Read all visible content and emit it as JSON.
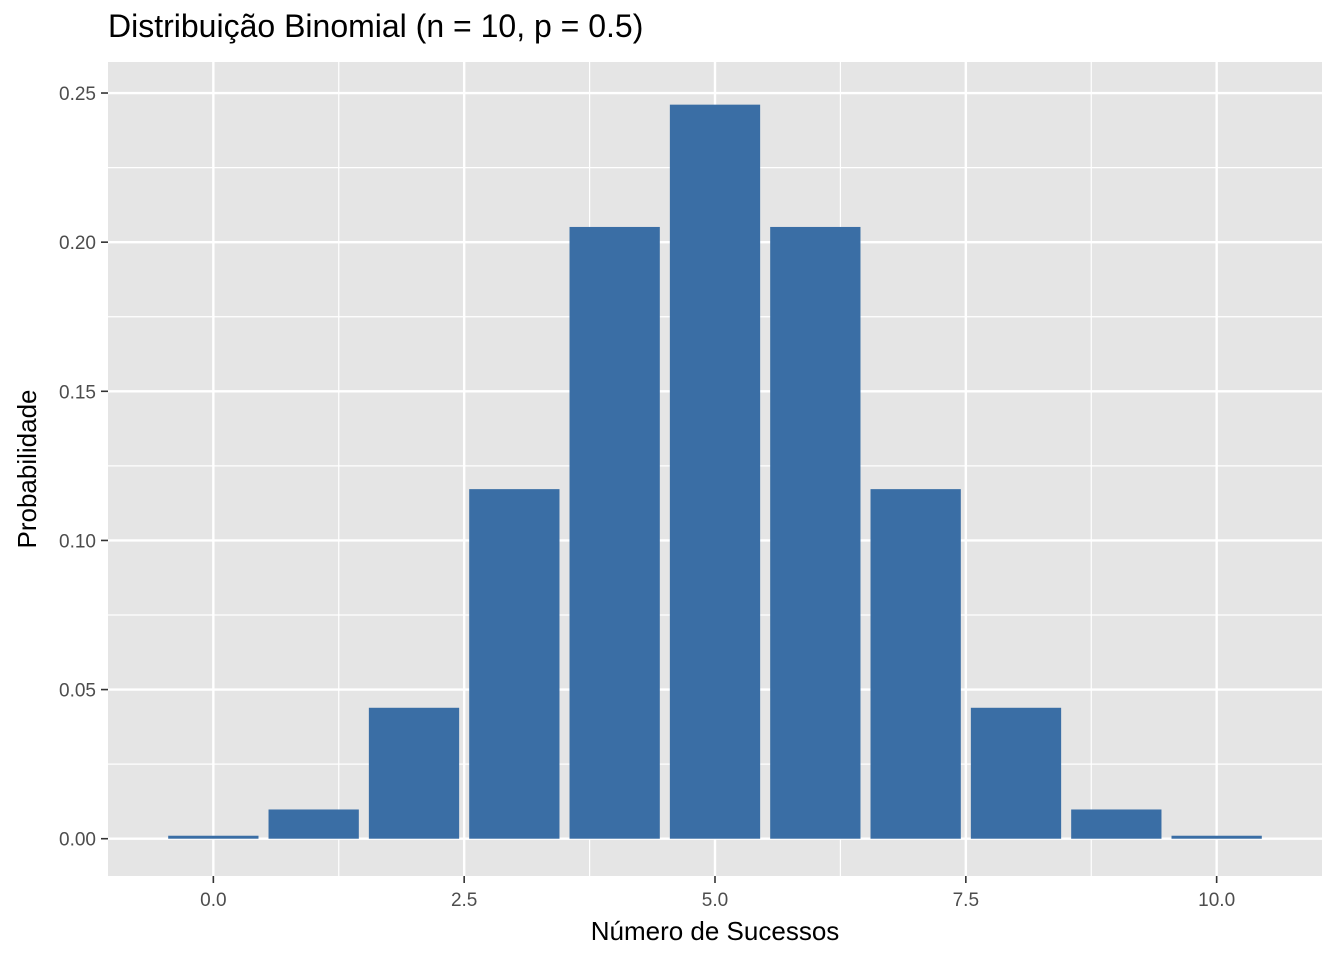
{
  "title": "Distribuição Binomial (n = 10, p = 0.5)",
  "chart_data": {
    "type": "bar",
    "title": "Distribuição Binomial (n = 10, p = 0.5)",
    "xlabel": "Número de Sucessos",
    "ylabel": "Probabilidade",
    "x": [
      0,
      1,
      2,
      3,
      4,
      5,
      6,
      7,
      8,
      9,
      10
    ],
    "values": [
      0.001,
      0.0098,
      0.0439,
      0.1172,
      0.2051,
      0.2461,
      0.2051,
      0.1172,
      0.0439,
      0.0098,
      0.001
    ],
    "xlim": [
      -0.5,
      10.5
    ],
    "ylim": [
      0,
      0.25
    ],
    "x_ticks": [
      0,
      2.5,
      5,
      7.5,
      10
    ],
    "x_tick_labels": [
      "0.0",
      "2.5",
      "5.0",
      "7.5",
      "10.0"
    ],
    "y_ticks": [
      0,
      0.05,
      0.1,
      0.15,
      0.2,
      0.25
    ],
    "y_tick_labels": [
      "0.00",
      "0.05",
      "0.10",
      "0.15",
      "0.20",
      "0.25"
    ],
    "bar_color": "#3a6ea5",
    "panel_background": "#e5e5e5",
    "grid_color": "#ffffff",
    "grid": true,
    "legend": "none"
  }
}
